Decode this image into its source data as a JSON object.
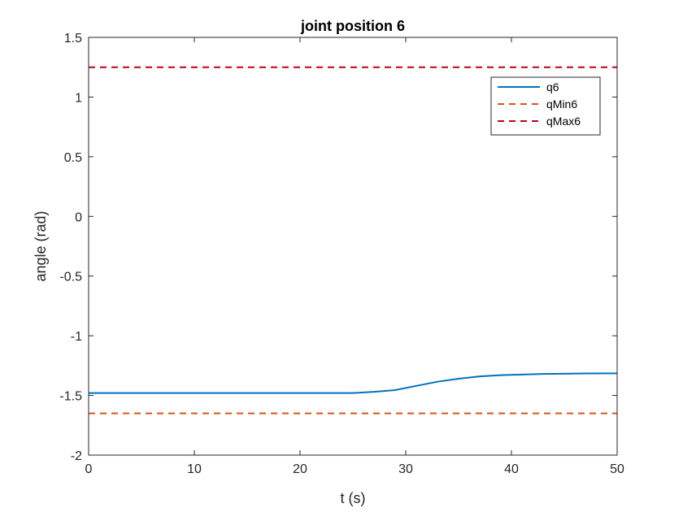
{
  "chart_data": {
    "type": "line",
    "title": "joint position 6",
    "xlabel": "t (s)",
    "ylabel": "angle (rad)",
    "xlim": [
      0,
      50
    ],
    "ylim": [
      -2,
      1.5
    ],
    "xticks": [
      0,
      10,
      20,
      30,
      40,
      50
    ],
    "xtick_labels": [
      "0",
      "10",
      "20",
      "30",
      "40",
      "50"
    ],
    "yticks": [
      -2,
      -1.5,
      -1,
      -0.5,
      0,
      0.5,
      1,
      1.5
    ],
    "ytick_labels": [
      "-2",
      "-1.5",
      "-1",
      "-0.5",
      "0",
      "0.5",
      "1",
      "1.5"
    ],
    "grid": false,
    "legend_position": "top-right",
    "series": [
      {
        "name": "q6",
        "color": "#0072BD",
        "style": "solid",
        "x": [
          0,
          5,
          10,
          15,
          20,
          25,
          27,
          29,
          31,
          33,
          35,
          37,
          39,
          41,
          43,
          45,
          47,
          50
        ],
        "y": [
          -1.48,
          -1.48,
          -1.48,
          -1.48,
          -1.48,
          -1.48,
          -1.47,
          -1.455,
          -1.42,
          -1.385,
          -1.36,
          -1.34,
          -1.33,
          -1.325,
          -1.32,
          -1.318,
          -1.316,
          -1.315
        ]
      },
      {
        "name": "qMin6",
        "color": "#D95319",
        "style": "dashed",
        "x": [
          0,
          50
        ],
        "y": [
          -1.65,
          -1.65
        ]
      },
      {
        "name": "qMax6",
        "color": "#C0001A",
        "style": "dashed",
        "x": [
          0,
          50
        ],
        "y": [
          1.25,
          1.25
        ]
      }
    ]
  }
}
